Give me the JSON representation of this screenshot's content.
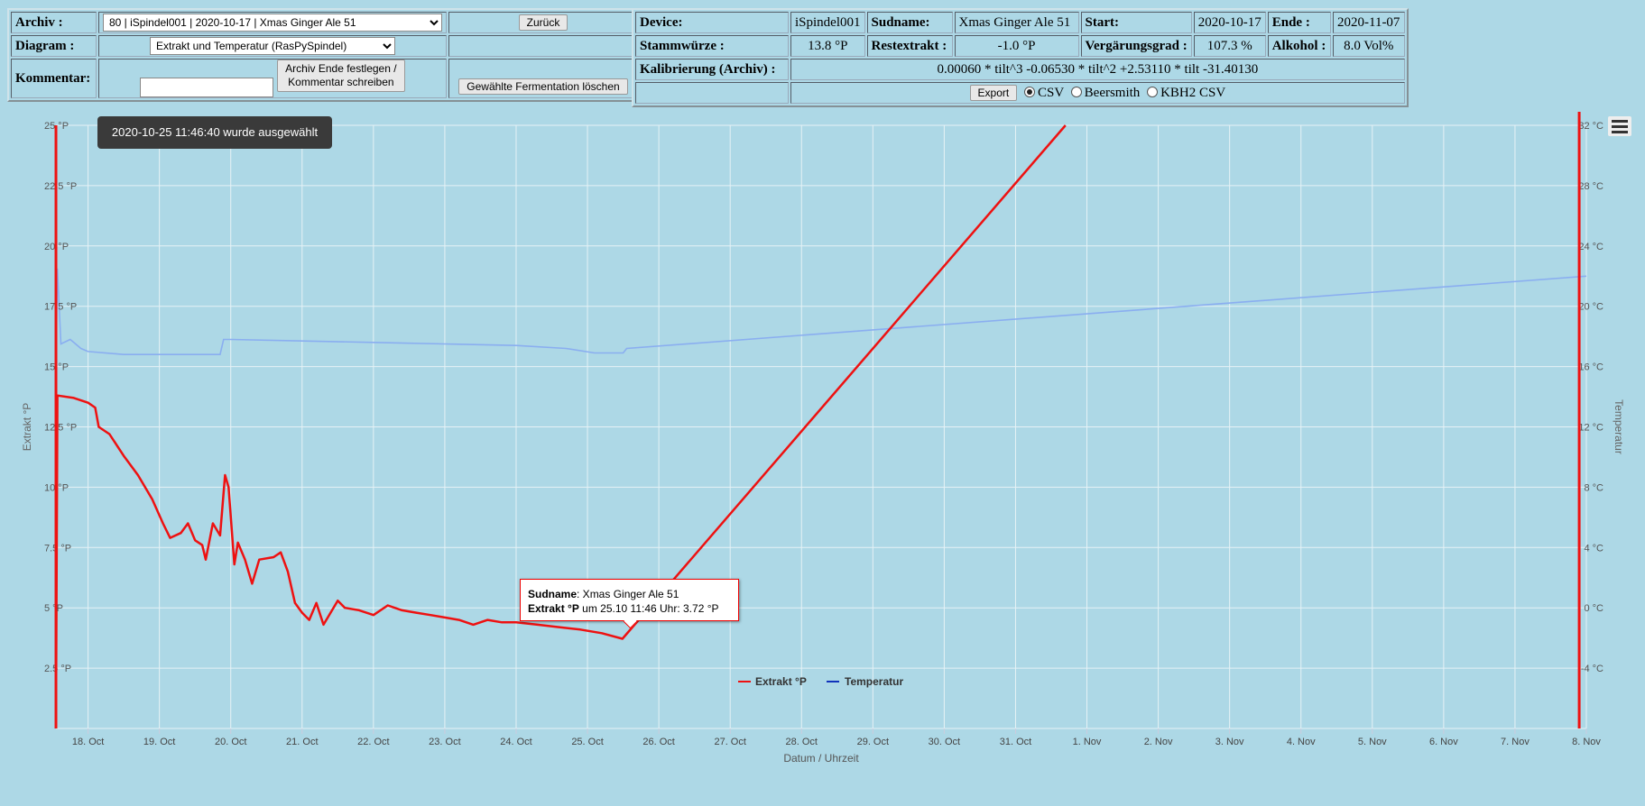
{
  "left": {
    "archiv_label": "Archiv :",
    "archiv_value": "80 | iSpindel001 | 2020-10-17 | Xmas Ginger Ale 51",
    "zurueck": "Zurück",
    "diagram_label": "Diagram :",
    "diagram_value": "Extrakt und Temperatur (RasPySpindel)",
    "kommentar_label": "Kommentar:",
    "archiv_ende_l1": "Archiv Ende festlegen /",
    "archiv_ende_l2": "Kommentar schreiben",
    "loeschen": "Gewählte Fermentation löschen"
  },
  "right": {
    "device_label": "Device:",
    "device": "iSpindel001",
    "sudname_label": "Sudname:",
    "sudname": "Xmas Ginger Ale 51",
    "start_label": "Start:",
    "start": "2020-10-17",
    "ende_label": "Ende :",
    "ende": "2020-11-07",
    "stammwuerze_label": "Stammwürze :",
    "stammwuerze": "13.8 °P",
    "restextrakt_label": "Restextrakt :",
    "restextrakt": "-1.0 °P",
    "vergaerung_label": "Vergärungsgrad :",
    "vergaerung": "107.3 %",
    "alkohol_label": "Alkohol :",
    "alkohol": "8.0 Vol%",
    "kalibrierung_label": "Kalibrierung (Archiv) :",
    "kalibrierung": "0.00060 * tilt^3 -0.06530 * tilt^2 +2.53110 * tilt -31.40130",
    "export": "Export",
    "opt_csv": "CSV",
    "opt_beersmith": "Beersmith",
    "opt_kbh2": "KBH2 CSV"
  },
  "selection_note": "2020-10-25 11:46:40 wurde ausgewählt",
  "tooltip": {
    "name_label": "Sudname",
    "name_value": ": Xmas Ginger Ale 51",
    "extrakt_label": "Extrakt °P",
    "extrakt_value": " um 25.10 11:46 Uhr: 3.72 °P"
  },
  "icons": {
    "menu": "hamburger-menu-icon",
    "radio": "radio-icon"
  },
  "colors": {
    "extrakt": "#ee1111",
    "temperatur_line": "#8aaef0",
    "temperatur_legend": "#1133bb"
  },
  "chart_data": {
    "type": "line",
    "xlabel": "Datum / Uhrzeit",
    "ylabel_left": "Extrakt °P",
    "ylabel_right": "Temperatur",
    "x_ticks": [
      "18. Oct",
      "19. Oct",
      "20. Oct",
      "21. Oct",
      "22. Oct",
      "23. Oct",
      "24. Oct",
      "25. Oct",
      "26. Oct",
      "27. Oct",
      "28. Oct",
      "29. Oct",
      "30. Oct",
      "31. Oct",
      "1. Nov",
      "2. Nov",
      "3. Nov",
      "4. Nov",
      "5. Nov",
      "6. Nov",
      "7. Nov",
      "8. Nov"
    ],
    "x_range_days": [
      17.55,
      39.0
    ],
    "y_left_ticks": [
      "2.5 °P",
      "5 °P",
      "7.5 °P",
      "10 °P",
      "12.5 °P",
      "15 °P",
      "17.5 °P",
      "20 °P",
      "22.5 °P",
      "25 °P"
    ],
    "y_left_range": [
      0,
      25
    ],
    "y_right_ticks": [
      "-4 °C",
      "0 °C",
      "4 °C",
      "8 °C",
      "12 °C",
      "16 °C",
      "20 °C",
      "24 °C",
      "28 °C",
      "32 °C"
    ],
    "y_right_range": [
      -8,
      32
    ],
    "grid": true,
    "legend_position": "bottom-center",
    "series": [
      {
        "name": "Extrakt °P",
        "points": [
          [
            17.55,
            0
          ],
          [
            17.57,
            13.8
          ],
          [
            17.8,
            13.7
          ],
          [
            18.0,
            13.5
          ],
          [
            18.1,
            13.3
          ],
          [
            18.15,
            12.5
          ],
          [
            18.3,
            12.2
          ],
          [
            18.5,
            11.3
          ],
          [
            18.7,
            10.5
          ],
          [
            18.9,
            9.5
          ],
          [
            19.05,
            8.5
          ],
          [
            19.15,
            7.9
          ],
          [
            19.3,
            8.1
          ],
          [
            19.4,
            8.5
          ],
          [
            19.5,
            7.8
          ],
          [
            19.6,
            7.6
          ],
          [
            19.65,
            7.0
          ],
          [
            19.75,
            8.5
          ],
          [
            19.85,
            8.0
          ],
          [
            19.92,
            10.5
          ],
          [
            19.97,
            10.0
          ],
          [
            20.05,
            6.8
          ],
          [
            20.1,
            7.7
          ],
          [
            20.2,
            7.0
          ],
          [
            20.3,
            6.0
          ],
          [
            20.4,
            7.0
          ],
          [
            20.6,
            7.1
          ],
          [
            20.7,
            7.3
          ],
          [
            20.8,
            6.5
          ],
          [
            20.9,
            5.2
          ],
          [
            21.0,
            4.8
          ],
          [
            21.1,
            4.5
          ],
          [
            21.2,
            5.2
          ],
          [
            21.3,
            4.3
          ],
          [
            21.5,
            5.3
          ],
          [
            21.6,
            5.0
          ],
          [
            21.8,
            4.9
          ],
          [
            22.0,
            4.7
          ],
          [
            22.2,
            5.1
          ],
          [
            22.4,
            4.9
          ],
          [
            22.6,
            4.8
          ],
          [
            22.8,
            4.7
          ],
          [
            23.0,
            4.6
          ],
          [
            23.2,
            4.5
          ],
          [
            23.4,
            4.3
          ],
          [
            23.6,
            4.5
          ],
          [
            23.8,
            4.4
          ],
          [
            24.0,
            4.4
          ],
          [
            24.3,
            4.3
          ],
          [
            24.6,
            4.2
          ],
          [
            24.9,
            4.1
          ],
          [
            25.2,
            3.95
          ],
          [
            25.49,
            3.72
          ],
          [
            31.7,
            25.0
          ]
        ]
      },
      {
        "name": "Temperatur",
        "points": [
          [
            17.55,
            16.0
          ],
          [
            17.57,
            22.5
          ],
          [
            17.62,
            17.5
          ],
          [
            17.75,
            17.8
          ],
          [
            17.9,
            17.2
          ],
          [
            18.0,
            17.0
          ],
          [
            18.5,
            16.8
          ],
          [
            19.0,
            16.8
          ],
          [
            19.5,
            16.8
          ],
          [
            19.85,
            16.8
          ],
          [
            19.9,
            17.8
          ],
          [
            20.0,
            17.8
          ],
          [
            21.0,
            17.7
          ],
          [
            22.0,
            17.6
          ],
          [
            23.0,
            17.5
          ],
          [
            24.0,
            17.4
          ],
          [
            24.7,
            17.2
          ],
          [
            25.1,
            16.9
          ],
          [
            25.5,
            16.9
          ],
          [
            25.55,
            17.2
          ],
          [
            39.0,
            22.0
          ]
        ]
      }
    ]
  }
}
